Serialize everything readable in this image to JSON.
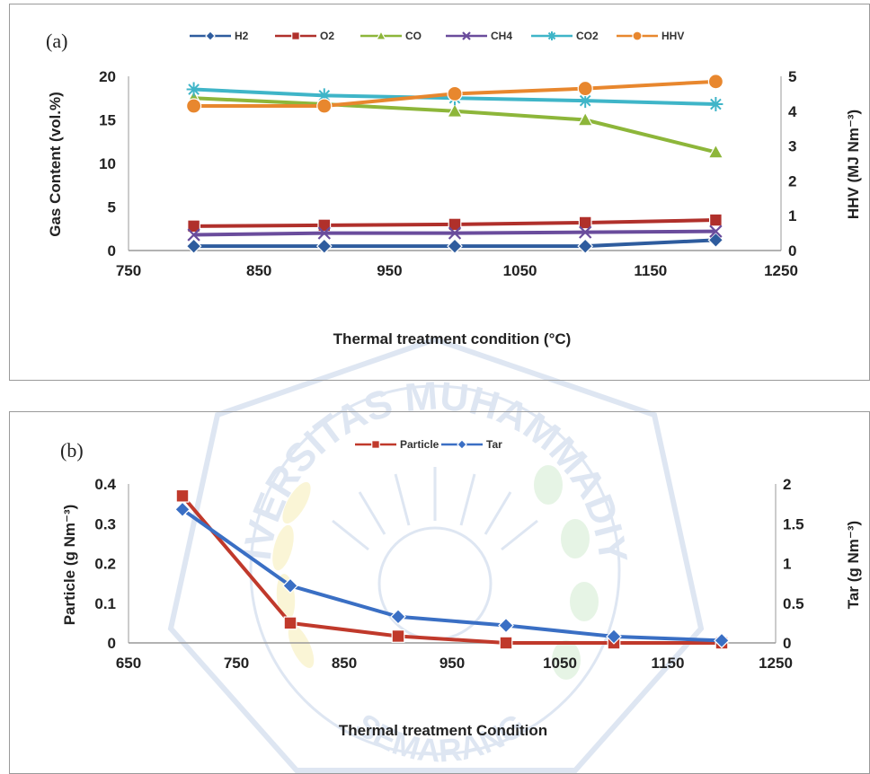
{
  "chart_data": [
    {
      "type": "line",
      "panel_label": "(a)",
      "x": [
        800,
        900,
        1000,
        1100,
        1200
      ],
      "xlabel": "Thermal treatment condition  (°C)",
      "xlim": [
        750,
        1250
      ],
      "xticks": [
        750,
        850,
        950,
        1050,
        1150,
        1250
      ],
      "ylabel": "Gas Content (vol.%)",
      "ylim": [
        0,
        20
      ],
      "yticks": [
        0,
        5,
        10,
        15,
        20
      ],
      "y2label": "HHV (MJ Nm⁻³)",
      "y2lim": [
        0,
        5
      ],
      "y2ticks": [
        0,
        1,
        2,
        3,
        4,
        5
      ],
      "grid": false,
      "legend_position": "top",
      "series": [
        {
          "name": "H2",
          "values": [
            0.5,
            0.5,
            0.5,
            0.5,
            1.2
          ],
          "color": "#2e5c9e",
          "marker": "diamond",
          "axis": "left"
        },
        {
          "name": "O2",
          "values": [
            2.8,
            2.9,
            3.0,
            3.2,
            3.5
          ],
          "color": "#b0302b",
          "marker": "square",
          "axis": "left"
        },
        {
          "name": "CO",
          "values": [
            17.5,
            16.8,
            16.0,
            15.0,
            11.3
          ],
          "color": "#8db63a",
          "marker": "triangle",
          "axis": "left"
        },
        {
          "name": "CH4",
          "values": [
            1.8,
            2.0,
            2.0,
            2.1,
            2.2
          ],
          "color": "#6a4c9c",
          "marker": "x",
          "axis": "left"
        },
        {
          "name": "CO2",
          "values": [
            18.5,
            17.8,
            17.5,
            17.2,
            16.8
          ],
          "color": "#3fb5c8",
          "marker": "star",
          "axis": "left"
        },
        {
          "name": "HHV",
          "values": [
            4.15,
            4.15,
            4.5,
            4.65,
            4.85
          ],
          "color": "#e8872e",
          "marker": "circle",
          "axis": "right"
        }
      ]
    },
    {
      "type": "line",
      "panel_label": "(b)",
      "x": [
        700,
        800,
        900,
        1000,
        1100,
        1200
      ],
      "xlabel": "Thermal treatment Condition",
      "xlim": [
        650,
        1250
      ],
      "xticks": [
        650,
        750,
        850,
        950,
        1050,
        1150,
        1250
      ],
      "ylabel": "Particle (g Nm⁻³)",
      "ylim": [
        0,
        0.4
      ],
      "yticks": [
        0,
        0.1,
        0.2,
        0.3,
        0.4
      ],
      "y2label": "Tar (g Nm⁻³)",
      "y2lim": [
        0,
        2
      ],
      "y2ticks": [
        0,
        0.5,
        1,
        1.5,
        2
      ],
      "grid": false,
      "legend_position": "top",
      "series": [
        {
          "name": "Particle",
          "values": [
            0.37,
            0.05,
            0.017,
            0.0,
            0.0,
            0.0
          ],
          "color": "#c0392b",
          "marker": "square",
          "axis": "left"
        },
        {
          "name": "Tar",
          "values": [
            1.68,
            0.72,
            0.33,
            0.22,
            0.08,
            0.03
          ],
          "color": "#3a6fc4",
          "marker": "diamond",
          "axis": "right"
        }
      ]
    }
  ],
  "watermark": {
    "top_text": "UNIVERSITAS MUHAMMADIYAH",
    "bottom_text": "SEMARANG",
    "color": "#7b9fd1"
  }
}
